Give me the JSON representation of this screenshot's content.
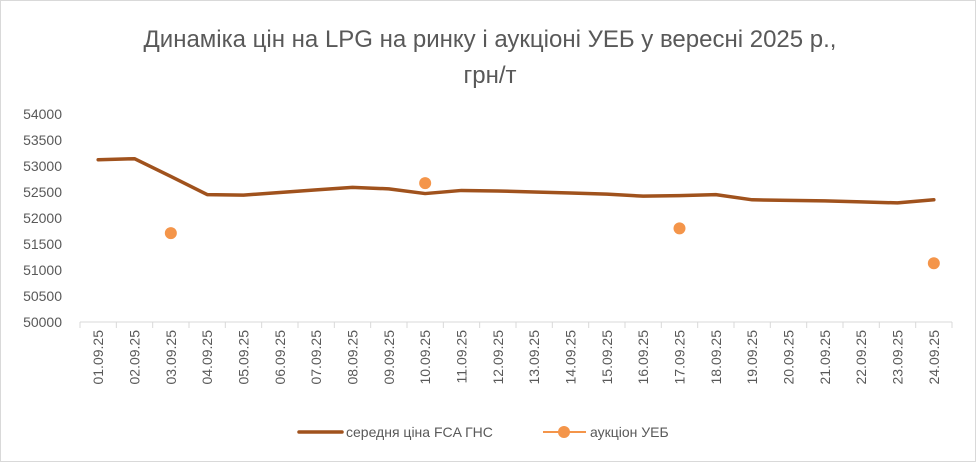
{
  "chart_data": {
    "type": "line",
    "title_line1": "Динаміка цін на LPG на ринку і аукціоні УЕБ у вересні 2025 р.,",
    "title_line2": "грн/т",
    "categories": [
      "01.09.25",
      "02.09.25",
      "03.09.25",
      "04.09.25",
      "05.09.25",
      "06.09.25",
      "07.09.25",
      "08.09.25",
      "09.09.25",
      "10.09.25",
      "11.09.25",
      "12.09.25",
      "13.09.25",
      "14.09.25",
      "15.09.25",
      "16.09.25",
      "17.09.25",
      "18.09.25",
      "19.09.25",
      "20.09.25",
      "21.09.25",
      "22.09.25",
      "23.09.25",
      "24.09.25"
    ],
    "ylim": [
      50000,
      54000
    ],
    "yticks": [
      "50000",
      "50500",
      "51000",
      "51500",
      "52000",
      "52500",
      "53000",
      "53500",
      "54000"
    ],
    "grid": "none",
    "legend_position": "bottom",
    "series": [
      {
        "name": "середня ціна FCA ГНС",
        "type": "line",
        "color": "#a0521d",
        "values": [
          53120,
          53140,
          52800,
          52450,
          52440,
          52490,
          52540,
          52590,
          52560,
          52470,
          52530,
          52520,
          52500,
          52480,
          52460,
          52420,
          52430,
          52450,
          52350,
          52340,
          52330,
          52310,
          52290,
          52350
        ]
      },
      {
        "name": "аукціон УЕБ",
        "type": "scatter",
        "color": "#f4954a",
        "values": [
          null,
          null,
          51710,
          null,
          null,
          null,
          null,
          null,
          null,
          52670,
          null,
          null,
          null,
          null,
          null,
          null,
          51800,
          null,
          null,
          null,
          null,
          null,
          null,
          51130
        ]
      }
    ]
  }
}
